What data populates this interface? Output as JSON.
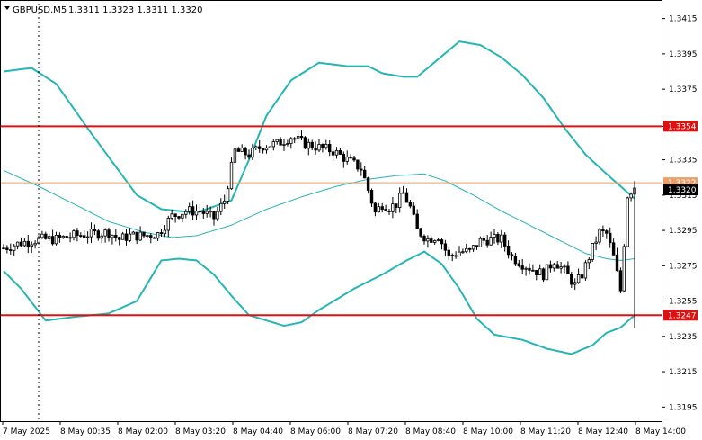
{
  "header": {
    "symbol_label": "GBPUSD,M5",
    "ohlc_label": "1.3311 1.3323 1.3311 1.3320"
  },
  "colors": {
    "candle": "#000000",
    "bollinger": "#26b5b5",
    "level_line": "#e01010",
    "current_price_line": "#e9a06a",
    "current_price_bg": "#000000",
    "level_label_bg": "#e01010",
    "grid_axis": "#000000"
  },
  "chart_data": {
    "type": "candlestick",
    "title": "GBPUSD,M5",
    "ylim": [
      1.3187,
      1.3425
    ],
    "y_ticks": [
      "1.3415",
      "1.3395",
      "1.3375",
      "1.3354",
      "1.3335",
      "1.3315",
      "1.3295",
      "1.3275",
      "1.3255",
      "1.3235",
      "1.3215",
      "1.3195"
    ],
    "x_tick_labels": [
      "7 May 2025",
      "8 May 00:35",
      "8 May 02:00",
      "8 May 03:20",
      "8 May 04:40",
      "8 May 06:00",
      "8 May 07:20",
      "8 May 08:40",
      "8 May 10:00",
      "8 May 11:20",
      "8 May 12:40",
      "8 May 14:00"
    ],
    "horizontal_levels": [
      {
        "value": 1.3354,
        "label": "1.3354"
      },
      {
        "value": 1.3247,
        "label": "1.3247"
      }
    ],
    "current_price": {
      "value": 1.332,
      "label": "1.3320"
    },
    "prev_price_label": "1.3322",
    "close_path": [
      [
        0,
        1.3285
      ],
      [
        5,
        1.3288
      ],
      [
        10,
        1.329
      ],
      [
        15,
        1.329
      ],
      [
        20,
        1.3292
      ],
      [
        25,
        1.3293
      ],
      [
        30,
        1.3294
      ],
      [
        33,
        1.329
      ],
      [
        36,
        1.3292
      ],
      [
        40,
        1.3292
      ],
      [
        44,
        1.3293
      ],
      [
        48,
        1.3303
      ],
      [
        52,
        1.3306
      ],
      [
        56,
        1.3306
      ],
      [
        60,
        1.3302
      ],
      [
        63,
        1.3312
      ],
      [
        66,
        1.334
      ],
      [
        70,
        1.3338
      ],
      [
        74,
        1.3343
      ],
      [
        78,
        1.3344
      ],
      [
        82,
        1.3348
      ],
      [
        86,
        1.3344
      ],
      [
        90,
        1.3342
      ],
      [
        94,
        1.334
      ],
      [
        98,
        1.3335
      ],
      [
        102,
        1.333
      ],
      [
        104,
        1.3318
      ],
      [
        106,
        1.3305
      ],
      [
        108,
        1.331
      ],
      [
        110,
        1.3308
      ],
      [
        112,
        1.331
      ],
      [
        114,
        1.3316
      ],
      [
        116,
        1.3308
      ],
      [
        118,
        1.3295
      ],
      [
        121,
        1.329
      ],
      [
        124,
        1.3292
      ],
      [
        127,
        1.328
      ],
      [
        130,
        1.3283
      ],
      [
        133,
        1.3283
      ],
      [
        136,
        1.3289
      ],
      [
        139,
        1.329
      ],
      [
        142,
        1.329
      ],
      [
        145,
        1.328
      ],
      [
        148,
        1.3276
      ],
      [
        151,
        1.3273
      ],
      [
        154,
        1.327
      ],
      [
        157,
        1.3278
      ],
      [
        160,
        1.3272
      ],
      [
        163,
        1.3264
      ],
      [
        165,
        1.327
      ],
      [
        168,
        1.3285
      ],
      [
        170,
        1.3294
      ],
      [
        172,
        1.3293
      ],
      [
        174,
        1.328
      ],
      [
        176,
        1.3261
      ],
      [
        178,
        1.3315
      ],
      [
        180,
        1.332
      ]
    ],
    "bb_upper": [
      [
        0,
        1.3385
      ],
      [
        8,
        1.3387
      ],
      [
        15,
        1.3378
      ],
      [
        25,
        1.335
      ],
      [
        38,
        1.3315
      ],
      [
        45,
        1.3307
      ],
      [
        55,
        1.3305
      ],
      [
        65,
        1.3312
      ],
      [
        70,
        1.3335
      ],
      [
        75,
        1.336
      ],
      [
        82,
        1.338
      ],
      [
        90,
        1.339
      ],
      [
        98,
        1.3388
      ],
      [
        104,
        1.3388
      ],
      [
        108,
        1.3384
      ],
      [
        114,
        1.3382
      ],
      [
        118,
        1.3382
      ],
      [
        124,
        1.3392
      ],
      [
        130,
        1.3402
      ],
      [
        136,
        1.34
      ],
      [
        142,
        1.3393
      ],
      [
        148,
        1.3383
      ],
      [
        154,
        1.337
      ],
      [
        160,
        1.3353
      ],
      [
        166,
        1.3338
      ],
      [
        172,
        1.3327
      ],
      [
        176,
        1.332
      ],
      [
        180,
        1.3313
      ]
    ],
    "bb_middle": [
      [
        0,
        1.3329
      ],
      [
        10,
        1.332
      ],
      [
        20,
        1.331
      ],
      [
        30,
        1.33
      ],
      [
        40,
        1.3294
      ],
      [
        48,
        1.3291
      ],
      [
        55,
        1.3292
      ],
      [
        65,
        1.3298
      ],
      [
        75,
        1.3307
      ],
      [
        85,
        1.3314
      ],
      [
        95,
        1.332
      ],
      [
        104,
        1.3324
      ],
      [
        112,
        1.3326
      ],
      [
        120,
        1.3327
      ],
      [
        126,
        1.3323
      ],
      [
        134,
        1.3315
      ],
      [
        142,
        1.3306
      ],
      [
        150,
        1.3298
      ],
      [
        158,
        1.329
      ],
      [
        166,
        1.3282
      ],
      [
        172,
        1.3279
      ],
      [
        176,
        1.3278
      ],
      [
        180,
        1.3279
      ]
    ],
    "bb_lower": [
      [
        0,
        1.3272
      ],
      [
        5,
        1.3262
      ],
      [
        12,
        1.3244
      ],
      [
        20,
        1.3246
      ],
      [
        30,
        1.3248
      ],
      [
        38,
        1.3255
      ],
      [
        45,
        1.3278
      ],
      [
        50,
        1.3279
      ],
      [
        55,
        1.3278
      ],
      [
        60,
        1.327
      ],
      [
        65,
        1.3258
      ],
      [
        70,
        1.3247
      ],
      [
        80,
        1.3241
      ],
      [
        85,
        1.3243
      ],
      [
        90,
        1.325
      ],
      [
        100,
        1.3262
      ],
      [
        108,
        1.327
      ],
      [
        115,
        1.3278
      ],
      [
        120,
        1.3283
      ],
      [
        125,
        1.3276
      ],
      [
        130,
        1.3262
      ],
      [
        135,
        1.3245
      ],
      [
        140,
        1.3236
      ],
      [
        148,
        1.3233
      ],
      [
        155,
        1.3228
      ],
      [
        162,
        1.3225
      ],
      [
        168,
        1.323
      ],
      [
        172,
        1.3237
      ],
      [
        176,
        1.324
      ],
      [
        180,
        1.3247
      ]
    ]
  }
}
